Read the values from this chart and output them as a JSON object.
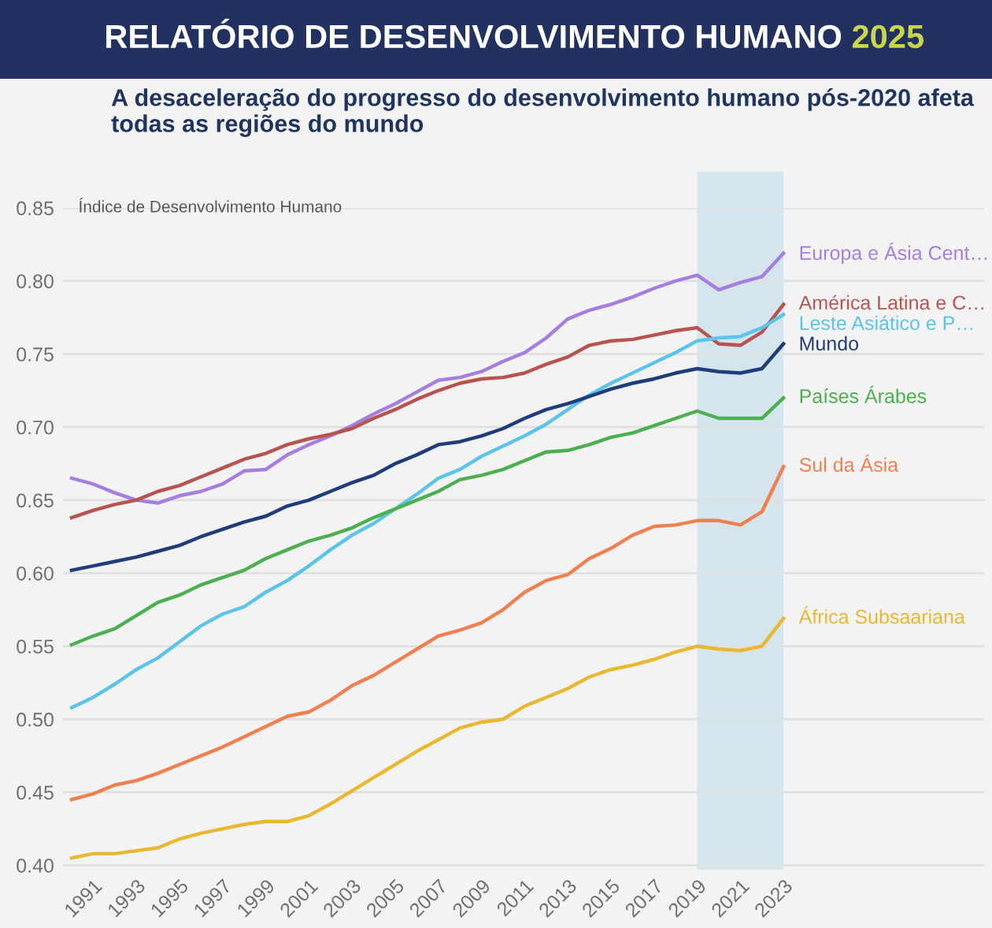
{
  "chart_data": {
    "type": "line",
    "title": "RELATÓRIO DE DESENVOLVIMENTO HUMANO 2025",
    "subtitle": "A desaceleração do progresso do desenvolvimento humano pós-2020 afeta todas as regiões do mundo",
    "ylabel": "Índice de Desenvolvimento Humano",
    "x": [
      1990,
      1991,
      1992,
      1993,
      1994,
      1995,
      1996,
      1997,
      1998,
      1999,
      2000,
      2001,
      2002,
      2003,
      2004,
      2005,
      2006,
      2007,
      2008,
      2009,
      2010,
      2011,
      2012,
      2013,
      2014,
      2015,
      2016,
      2017,
      2018,
      2019,
      2020,
      2021,
      2022,
      2023
    ],
    "series": [
      {
        "name": "Europa e Ásia Cent…",
        "color": "#a57fe0",
        "values": [
          0.665,
          0.661,
          0.655,
          0.65,
          0.648,
          0.653,
          0.656,
          0.661,
          0.67,
          0.671,
          0.681,
          0.688,
          0.694,
          0.701,
          0.709,
          0.716,
          0.724,
          0.732,
          0.734,
          0.738,
          0.745,
          0.751,
          0.761,
          0.774,
          0.78,
          0.784,
          0.789,
          0.795,
          0.8,
          0.804,
          0.794,
          0.799,
          0.803,
          0.819
        ]
      },
      {
        "name": "América Latina e C…",
        "color": "#b85450",
        "values": [
          0.638,
          0.643,
          0.647,
          0.65,
          0.656,
          0.66,
          0.666,
          0.672,
          0.678,
          0.682,
          0.688,
          0.692,
          0.695,
          0.699,
          0.706,
          0.712,
          0.719,
          0.725,
          0.73,
          0.733,
          0.734,
          0.737,
          0.743,
          0.748,
          0.756,
          0.759,
          0.76,
          0.763,
          0.766,
          0.768,
          0.757,
          0.756,
          0.765,
          0.784
        ]
      },
      {
        "name": "Leste Asiático e P…",
        "color": "#5bc4e8",
        "values": [
          0.508,
          0.515,
          0.524,
          0.534,
          0.542,
          0.553,
          0.564,
          0.572,
          0.577,
          0.587,
          0.595,
          0.605,
          0.616,
          0.626,
          0.634,
          0.644,
          0.654,
          0.665,
          0.671,
          0.68,
          0.687,
          0.694,
          0.702,
          0.712,
          0.722,
          0.73,
          0.737,
          0.744,
          0.751,
          0.759,
          0.761,
          0.762,
          0.768,
          0.777
        ]
      },
      {
        "name": "Mundo",
        "color": "#1f3d7a",
        "values": [
          0.602,
          0.605,
          0.608,
          0.611,
          0.615,
          0.619,
          0.625,
          0.63,
          0.635,
          0.639,
          0.646,
          0.65,
          0.656,
          0.662,
          0.667,
          0.675,
          0.681,
          0.688,
          0.69,
          0.694,
          0.699,
          0.706,
          0.712,
          0.716,
          0.721,
          0.726,
          0.73,
          0.733,
          0.737,
          0.74,
          0.738,
          0.737,
          0.74,
          0.757
        ]
      },
      {
        "name": "Países Árabes",
        "color": "#4caf50",
        "values": [
          0.551,
          0.557,
          0.562,
          0.571,
          0.58,
          0.585,
          0.592,
          0.597,
          0.602,
          0.61,
          0.616,
          0.622,
          0.626,
          0.631,
          0.638,
          0.644,
          0.65,
          0.656,
          0.664,
          0.667,
          0.671,
          0.677,
          0.683,
          0.684,
          0.688,
          0.693,
          0.696,
          0.701,
          0.706,
          0.711,
          0.706,
          0.706,
          0.706,
          0.72
        ]
      },
      {
        "name": "Sul da Ásia",
        "color": "#f08050",
        "values": [
          0.445,
          0.449,
          0.455,
          0.458,
          0.463,
          0.469,
          0.475,
          0.481,
          0.488,
          0.495,
          0.502,
          0.505,
          0.513,
          0.523,
          0.53,
          0.539,
          0.548,
          0.557,
          0.561,
          0.566,
          0.575,
          0.587,
          0.595,
          0.599,
          0.61,
          0.617,
          0.626,
          0.632,
          0.633,
          0.636,
          0.636,
          0.633,
          0.642,
          0.673
        ]
      },
      {
        "name": "África Subsaariana",
        "color": "#e8b830",
        "values": [
          0.405,
          0.408,
          0.408,
          0.41,
          0.412,
          0.418,
          0.422,
          0.425,
          0.428,
          0.43,
          0.43,
          0.434,
          0.442,
          0.451,
          0.46,
          0.469,
          0.478,
          0.486,
          0.494,
          0.498,
          0.5,
          0.509,
          0.515,
          0.521,
          0.529,
          0.534,
          0.537,
          0.541,
          0.546,
          0.55,
          0.548,
          0.547,
          0.55,
          0.569
        ]
      }
    ],
    "xlim": [
      1989.6,
      2032.3
    ],
    "ylim": [
      0.397,
      0.85
    ],
    "xticks": [
      1991,
      1993,
      1995,
      1997,
      1999,
      2001,
      2003,
      2005,
      2007,
      2009,
      2011,
      2013,
      2015,
      2017,
      2019,
      2021,
      2023
    ],
    "yticks": [
      {
        "value": 0.4,
        "label": "0.40"
      },
      {
        "value": 0.45,
        "label": "0.45"
      },
      {
        "value": 0.5,
        "label": "0.50"
      },
      {
        "value": 0.55,
        "label": "0.55"
      },
      {
        "value": 0.6,
        "label": "0.60"
      },
      {
        "value": 0.65,
        "label": "0.65"
      },
      {
        "value": 0.7,
        "label": "0.70"
      },
      {
        "value": 0.75,
        "label": "0.75"
      },
      {
        "value": 0.8,
        "label": "0.80"
      },
      {
        "value": 0.85,
        "label": "0.85"
      }
    ],
    "bands": [
      {
        "axis": "x",
        "from": 2019,
        "to": 2023,
        "color": "#d5e5ee"
      }
    ],
    "grid": "y",
    "line_style": "solid"
  }
}
